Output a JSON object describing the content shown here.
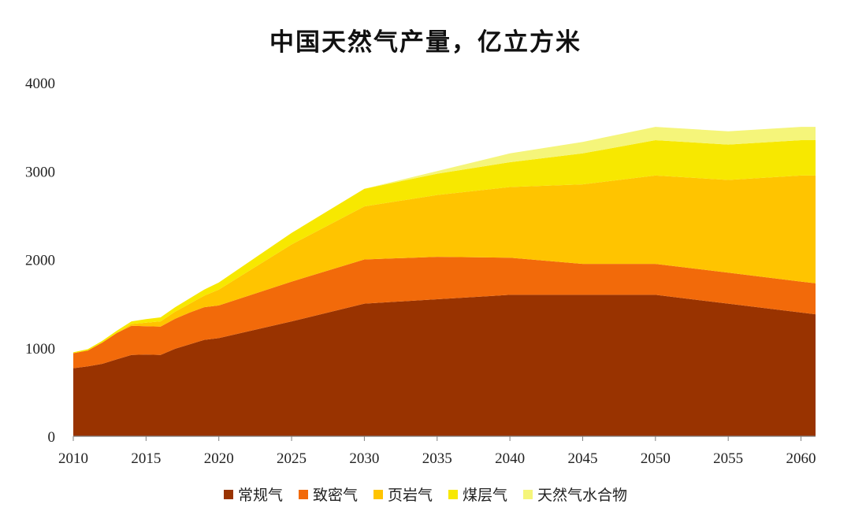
{
  "chart_data": {
    "type": "area",
    "stacked": true,
    "title": "中国天然气产量，亿立方米",
    "xlabel": "",
    "ylabel": "",
    "xlim": [
      2010,
      2061
    ],
    "ylim": [
      0,
      4000
    ],
    "x_ticks": [
      2010,
      2015,
      2020,
      2025,
      2030,
      2035,
      2040,
      2045,
      2050,
      2055,
      2060
    ],
    "y_ticks": [
      0,
      1000,
      2000,
      3000,
      4000
    ],
    "grid": false,
    "legend_position": "bottom",
    "x": [
      2010,
      2011,
      2012,
      2013,
      2014,
      2015,
      2016,
      2017,
      2018,
      2019,
      2020,
      2025,
      2030,
      2035,
      2040,
      2045,
      2050,
      2055,
      2060,
      2061
    ],
    "series": [
      {
        "name": "常规气",
        "color": "#993300",
        "values": [
          770,
          790,
          820,
          870,
          920,
          925,
          920,
          990,
          1040,
          1090,
          1110,
          1300,
          1500,
          1550,
          1600,
          1600,
          1600,
          1500,
          1400,
          1380
        ]
      },
      {
        "name": "致密气",
        "color": "#F26A0A",
        "values": [
          170,
          180,
          240,
          300,
          330,
          320,
          320,
          340,
          360,
          370,
          370,
          450,
          500,
          480,
          420,
          350,
          350,
          350,
          350,
          350
        ]
      },
      {
        "name": "页岩气",
        "color": "#FFC400",
        "values": [
          0,
          0,
          0,
          0,
          20,
          40,
          60,
          80,
          100,
          130,
          180,
          420,
          600,
          700,
          800,
          900,
          1000,
          1050,
          1200,
          1220
        ]
      },
      {
        "name": "煤层气",
        "color": "#F7E800",
        "values": [
          10,
          15,
          20,
          25,
          30,
          40,
          45,
          50,
          60,
          70,
          80,
          130,
          200,
          240,
          280,
          350,
          400,
          400,
          400,
          400
        ]
      },
      {
        "name": "天然气水合物",
        "color": "#F5F57A",
        "values": [
          0,
          0,
          0,
          0,
          0,
          0,
          0,
          0,
          0,
          0,
          0,
          0,
          0,
          30,
          100,
          130,
          150,
          150,
          150,
          150
        ]
      }
    ]
  }
}
